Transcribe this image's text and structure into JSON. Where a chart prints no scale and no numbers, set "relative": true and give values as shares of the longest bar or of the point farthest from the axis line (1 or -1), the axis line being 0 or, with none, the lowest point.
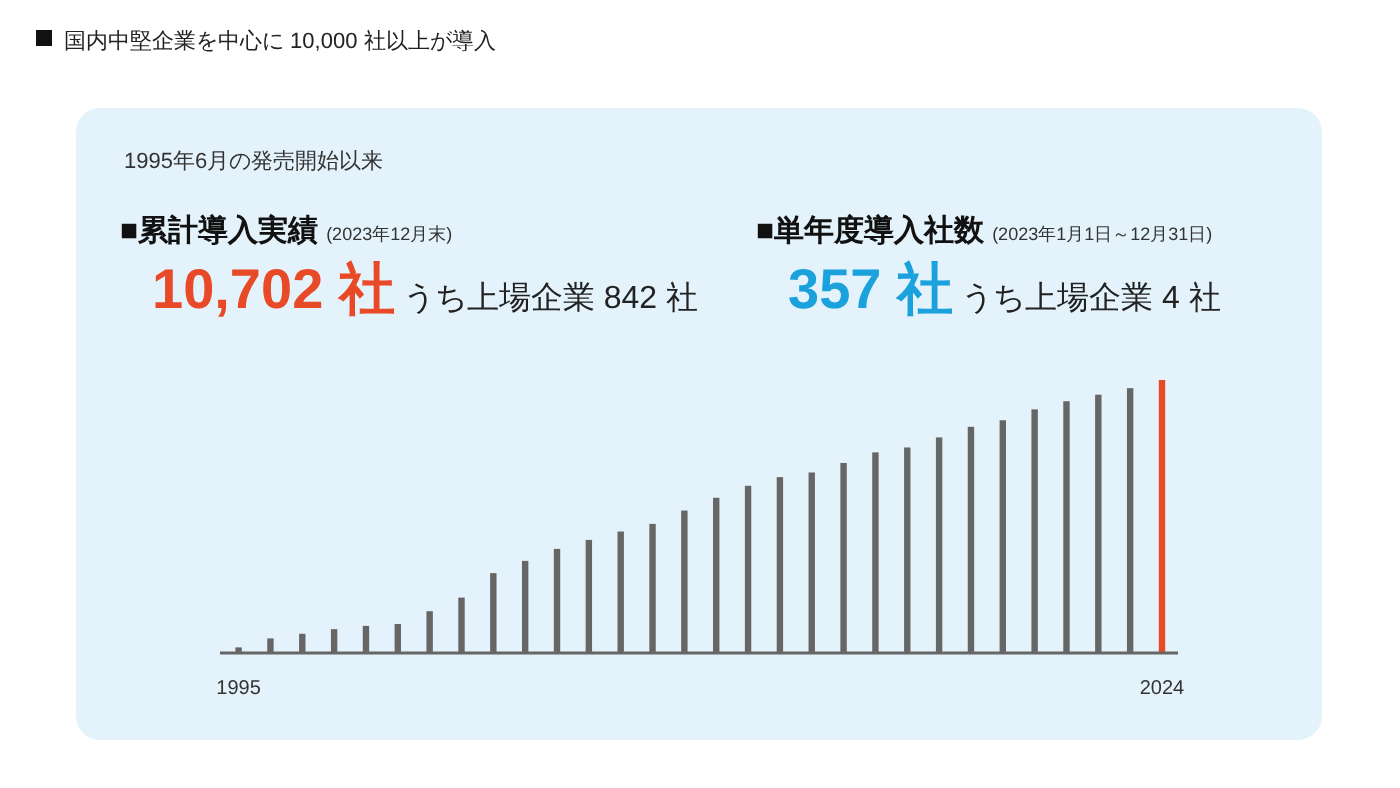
{
  "chart_data": {
    "type": "bar",
    "relative": true,
    "title": "国内中堅企業を中心に 10,000 社以上が導入",
    "subtitle": "1995年6月の発売開始以来",
    "categories": [
      "1995",
      null,
      null,
      null,
      null,
      null,
      null,
      null,
      null,
      null,
      null,
      null,
      null,
      null,
      null,
      null,
      null,
      null,
      null,
      null,
      null,
      null,
      null,
      null,
      null,
      null,
      null,
      null,
      null,
      "2024"
    ],
    "values": [
      0.017,
      0.05,
      0.067,
      0.084,
      0.096,
      0.103,
      0.15,
      0.2,
      0.29,
      0.335,
      0.379,
      0.412,
      0.443,
      0.471,
      0.52,
      0.567,
      0.611,
      0.643,
      0.66,
      0.695,
      0.734,
      0.752,
      0.789,
      0.828,
      0.852,
      0.892,
      0.922,
      0.946,
      0.97,
      1
    ],
    "colors": [
      "#666666",
      "#666666",
      "#666666",
      "#666666",
      "#666666",
      "#666666",
      "#666666",
      "#666666",
      "#666666",
      "#666666",
      "#666666",
      "#666666",
      "#666666",
      "#666666",
      "#666666",
      "#666666",
      "#666666",
      "#666666",
      "#666666",
      "#666666",
      "#666666",
      "#666666",
      "#666666",
      "#666666",
      "#666666",
      "#666666",
      "#666666",
      "#666666",
      "#666666",
      "#e84a27"
    ],
    "annotations": [
      "■累計導入実績",
      "(2023年12月末)",
      "10,702 社",
      "うち上場企業 842 社",
      "■単年度導入社数",
      "(2023年1月1日～12月31日)",
      "357 社",
      "うち上場企業 4 社"
    ]
  }
}
